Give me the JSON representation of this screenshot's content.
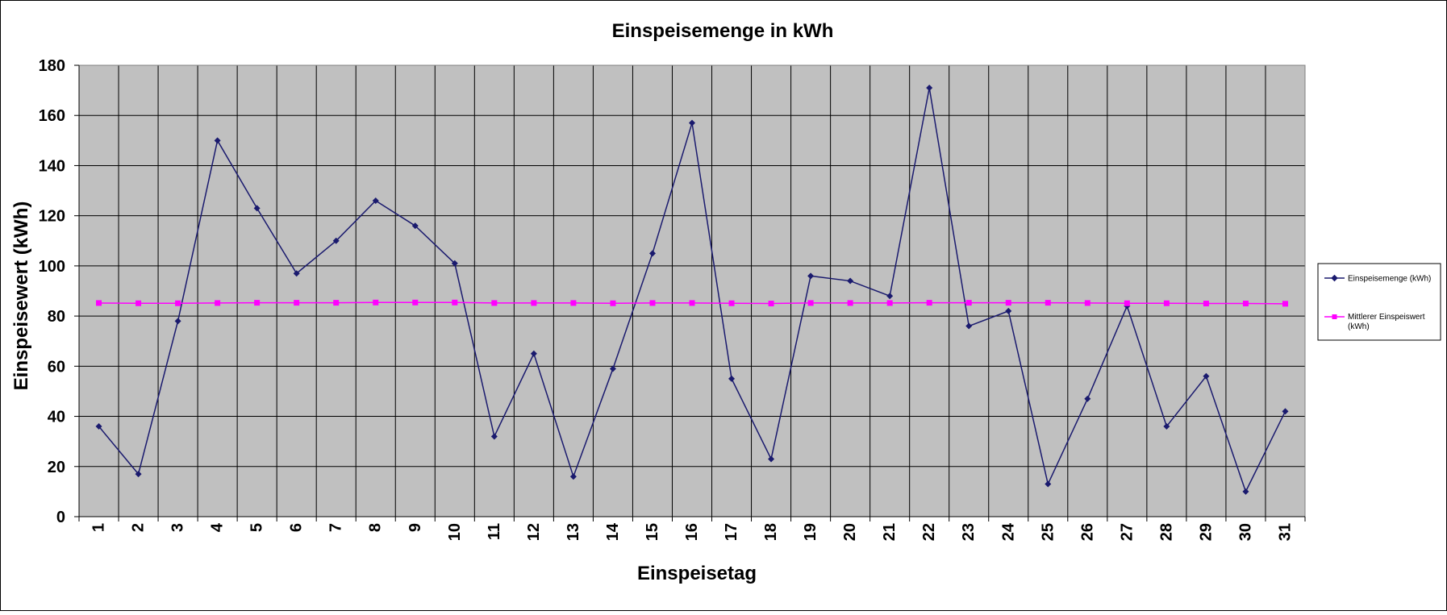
{
  "chart_data": {
    "type": "line",
    "title": "Einspeisemenge in kWh",
    "xlabel": "Einspeisetag",
    "ylabel": "Einspeisewert  (kWh)",
    "ylim": [
      0,
      180
    ],
    "yticks": [
      0,
      20,
      40,
      60,
      80,
      100,
      120,
      140,
      160,
      180
    ],
    "grid": true,
    "legend_position": "right",
    "categories": [
      "1",
      "2",
      "3",
      "4",
      "5",
      "6",
      "7",
      "8",
      "9",
      "10",
      "11",
      "12",
      "13",
      "14",
      "15",
      "16",
      "17",
      "18",
      "19",
      "20",
      "21",
      "22",
      "23",
      "24",
      "25",
      "26",
      "27",
      "28",
      "29",
      "30",
      "31"
    ],
    "series": [
      {
        "name": "Einspeisemenge (kWh)",
        "color": "#1a1a6e",
        "marker": "diamond",
        "values": [
          36,
          17,
          78,
          150,
          123,
          97,
          110,
          126,
          116,
          101,
          32,
          65,
          16,
          59,
          105,
          157,
          55,
          23,
          96,
          94,
          88,
          171,
          76,
          82,
          13,
          47,
          84,
          36,
          56,
          10,
          42
        ]
      },
      {
        "name": "Mittlerer Einspeiswert (kWh)",
        "color": "#ff00ff",
        "marker": "square",
        "values": [
          85.2,
          85.1,
          85.1,
          85.2,
          85.3,
          85.3,
          85.3,
          85.4,
          85.4,
          85.4,
          85.2,
          85.2,
          85.2,
          85.1,
          85.2,
          85.2,
          85.1,
          85.0,
          85.2,
          85.2,
          85.2,
          85.3,
          85.3,
          85.3,
          85.3,
          85.2,
          85.1,
          85.1,
          85.0,
          85.0,
          84.9
        ]
      }
    ]
  }
}
